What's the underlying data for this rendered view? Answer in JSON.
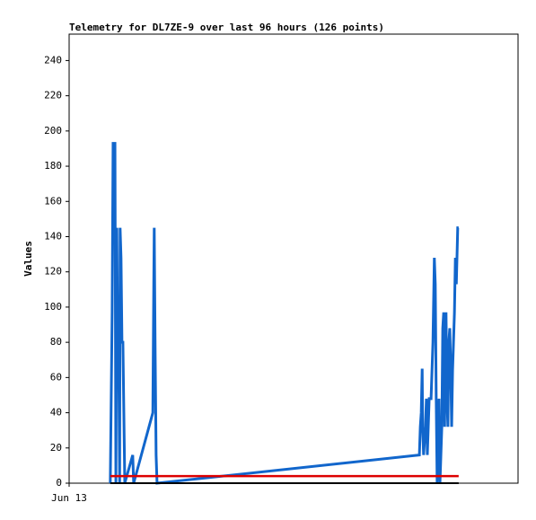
{
  "chart_data": {
    "type": "line",
    "title": "Telemetry for DL7ZE-9 over last 96 hours (126 points)",
    "y_label": "Values",
    "x": [
      8.8,
      9.2,
      9.4,
      9.8,
      10.0,
      10.2,
      10.4,
      10.6,
      10.8,
      10.9,
      11.1,
      11.3,
      11.5,
      11.7,
      11.9,
      13.6,
      13.8,
      17.9,
      18.1,
      18.2,
      18.4,
      18.6,
      18.8,
      74.9,
      75.1,
      75.3,
      75.5,
      75.6,
      75.8,
      76.2,
      76.4,
      76.6,
      76.8,
      77.0,
      77.4,
      77.8,
      78.1,
      78.3,
      78.5,
      78.7,
      78.9,
      79.1,
      79.3,
      79.7,
      79.9,
      80.1,
      80.3,
      80.4,
      80.6,
      80.8,
      81.0,
      81.2,
      81.4,
      81.6,
      81.8,
      82.0,
      82.4,
      82.6,
      82.8,
      83.1,
      83.3
    ],
    "series": [
      {
        "color": "#1166cc",
        "values": [
          0,
          97,
          193,
          193,
          0,
          145,
          65,
          73,
          0,
          145,
          128,
          80,
          80,
          40,
          0,
          16,
          0,
          40,
          113,
          145,
          73,
          16,
          0,
          16,
          32,
          40,
          65,
          32,
          16,
          32,
          48,
          16,
          32,
          48,
          48,
          80,
          128,
          113,
          48,
          0,
          32,
          48,
          0,
          32,
          88,
          97,
          32,
          73,
          97,
          48,
          32,
          80,
          88,
          65,
          32,
          64,
          97,
          128,
          113,
          145,
          145
        ]
      },
      {
        "color": "#dd0000",
        "values": [
          4,
          4,
          4,
          4,
          4,
          4,
          4,
          4,
          4,
          4,
          4,
          4,
          4,
          4,
          4,
          4,
          4,
          4,
          4,
          4,
          4,
          4,
          4,
          4,
          4,
          4,
          4,
          4,
          4,
          4,
          4,
          4,
          4,
          4,
          4,
          4,
          4,
          4,
          4,
          4,
          4,
          4,
          4,
          4,
          4,
          4,
          4,
          4,
          4,
          4,
          4,
          4,
          4,
          4,
          4,
          4,
          4,
          4,
          4,
          4,
          4
        ]
      },
      {
        "color": "#000000",
        "values": [
          0,
          0,
          0,
          0,
          0,
          0,
          0,
          0,
          0,
          0,
          0,
          0,
          0,
          0,
          0,
          0,
          0,
          0,
          0,
          0,
          0,
          0,
          0,
          0,
          0,
          0,
          0,
          0,
          0,
          0,
          0,
          0,
          0,
          0,
          0,
          0,
          0,
          0,
          0,
          0,
          0,
          0,
          0,
          0,
          0,
          0,
          0,
          0,
          0,
          0,
          0,
          0,
          0,
          0,
          0,
          0,
          0,
          0,
          0,
          0,
          0
        ]
      }
    ],
    "xlim": [
      0,
      96
    ],
    "xticks": [
      {
        "value": 0,
        "label": "Jun 13"
      }
    ],
    "ylim": [
      0,
      255
    ],
    "yticks": [
      0,
      20,
      40,
      60,
      80,
      100,
      120,
      140,
      160,
      180,
      200,
      220,
      240
    ]
  }
}
